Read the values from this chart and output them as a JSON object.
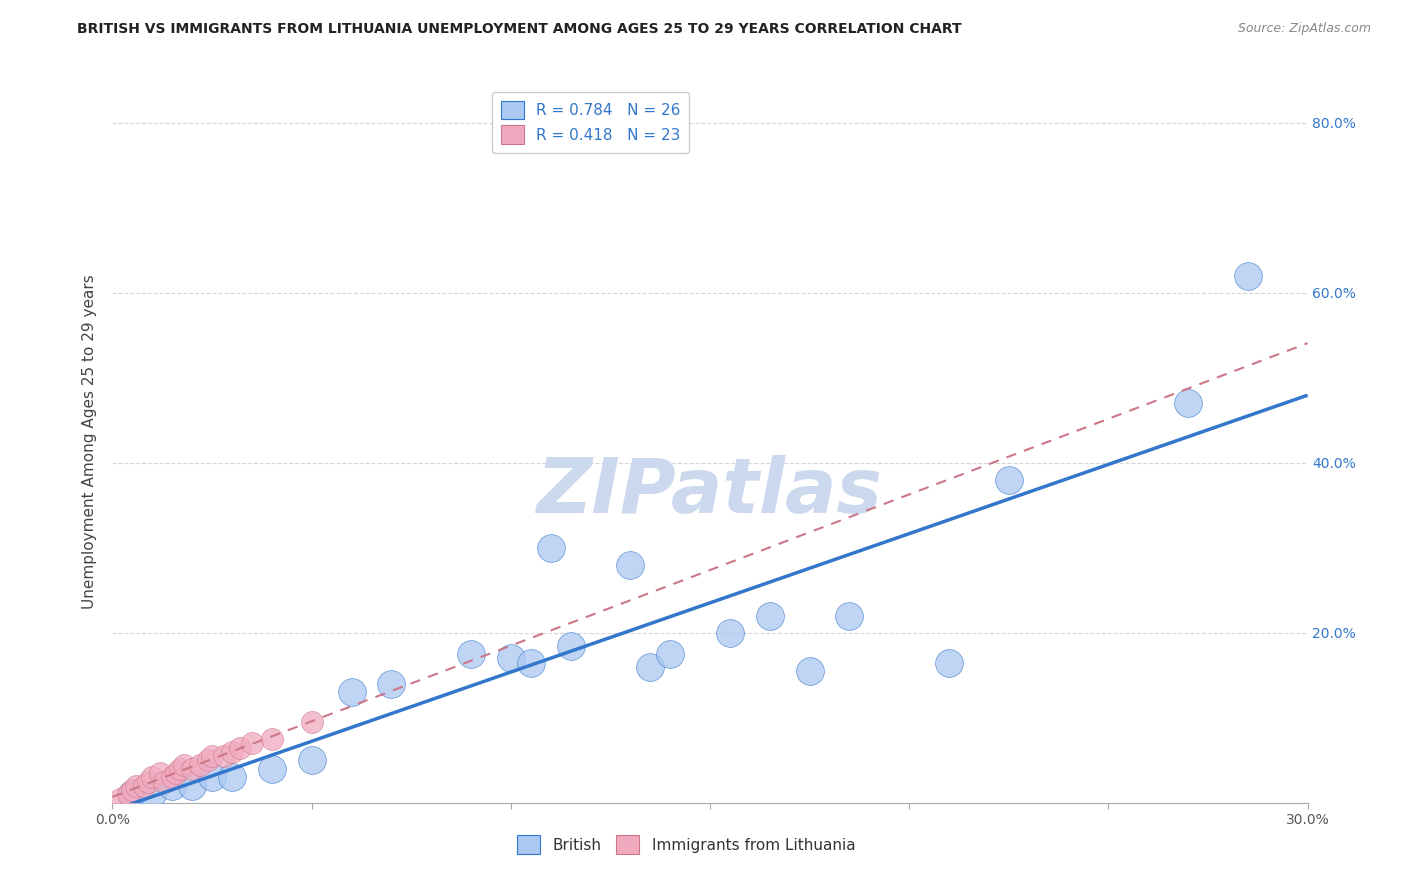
{
  "title": "BRITISH VS IMMIGRANTS FROM LITHUANIA UNEMPLOYMENT AMONG AGES 25 TO 29 YEARS CORRELATION CHART",
  "source": "Source: ZipAtlas.com",
  "ylabel": "Unemployment Among Ages 25 to 29 years",
  "xlim": [
    0.0,
    0.3
  ],
  "ylim": [
    0.0,
    0.85
  ],
  "xticks": [
    0.0,
    0.05,
    0.1,
    0.15,
    0.2,
    0.25,
    0.3
  ],
  "xticklabels": [
    "0.0%",
    "",
    "",
    "",
    "",
    "",
    "30.0%"
  ],
  "yticks": [
    0.0,
    0.2,
    0.4,
    0.6,
    0.8
  ],
  "right_yticklabels": [
    "",
    "20.0%",
    "40.0%",
    "60.0%",
    "80.0%"
  ],
  "R_british": 0.784,
  "N_british": 26,
  "R_lithuania": 0.418,
  "N_lithuania": 23,
  "british_color": "#aac8f0",
  "lithuania_color": "#f0aac0",
  "british_line_color": "#3377cc",
  "lithuania_line_color": "#cc7788",
  "watermark": "ZIPatlas",
  "watermark_color": "#ccd8ee",
  "background_color": "#ffffff",
  "grid_color": "#cccccc",
  "british_x": [
    0.005,
    0.01,
    0.015,
    0.02,
    0.025,
    0.03,
    0.04,
    0.05,
    0.06,
    0.07,
    0.09,
    0.1,
    0.105,
    0.11,
    0.115,
    0.13,
    0.135,
    0.14,
    0.155,
    0.165,
    0.175,
    0.185,
    0.21,
    0.225,
    0.27,
    0.285
  ],
  "british_y": [
    0.01,
    0.01,
    0.02,
    0.02,
    0.03,
    0.03,
    0.04,
    0.05,
    0.13,
    0.14,
    0.175,
    0.17,
    0.165,
    0.3,
    0.185,
    0.28,
    0.16,
    0.175,
    0.2,
    0.22,
    0.155,
    0.22,
    0.165,
    0.38,
    0.47,
    0.62
  ],
  "lithuania_x": [
    0.002,
    0.004,
    0.005,
    0.006,
    0.008,
    0.009,
    0.01,
    0.012,
    0.013,
    0.015,
    0.016,
    0.017,
    0.018,
    0.02,
    0.022,
    0.024,
    0.025,
    0.028,
    0.03,
    0.032,
    0.035,
    0.04,
    0.05
  ],
  "lithuania_y": [
    0.005,
    0.01,
    0.015,
    0.02,
    0.02,
    0.025,
    0.03,
    0.035,
    0.025,
    0.03,
    0.035,
    0.04,
    0.045,
    0.04,
    0.045,
    0.05,
    0.055,
    0.055,
    0.06,
    0.065,
    0.07,
    0.075,
    0.095
  ]
}
